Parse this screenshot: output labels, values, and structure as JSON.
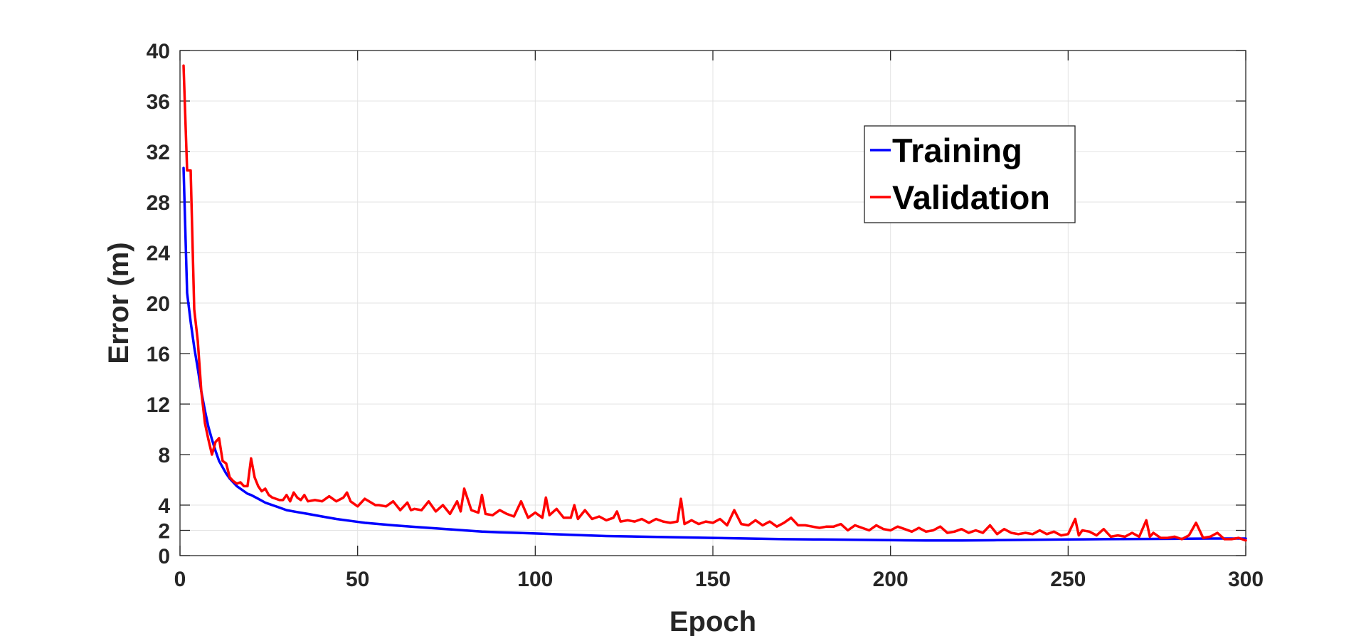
{
  "chart_data": {
    "type": "line",
    "title": "",
    "xlabel": "Epoch",
    "ylabel": "Error (m)",
    "xlim": [
      0,
      300
    ],
    "ylim": [
      0,
      40
    ],
    "xticks": [
      0,
      50,
      100,
      150,
      200,
      250,
      300
    ],
    "yticks": [
      0,
      2,
      4,
      8,
      12,
      16,
      20,
      24,
      28,
      32,
      36,
      40
    ],
    "grid": true,
    "legend_position": "top-right",
    "series": [
      {
        "name": "Training",
        "color": "#0000ff",
        "x": [
          1,
          2,
          3,
          4,
          5,
          6,
          7,
          8,
          9,
          10,
          11,
          12,
          13,
          14,
          15,
          16,
          17,
          18,
          19,
          20,
          22,
          24,
          26,
          28,
          30,
          33,
          36,
          40,
          44,
          48,
          52,
          56,
          60,
          65,
          70,
          75,
          80,
          85,
          90,
          95,
          100,
          110,
          120,
          130,
          140,
          150,
          160,
          170,
          180,
          190,
          200,
          210,
          220,
          230,
          240,
          250,
          260,
          270,
          280,
          290,
          300
        ],
        "values": [
          30.7,
          20.8,
          18.5,
          16.5,
          14.8,
          13.0,
          11.5,
          10.2,
          9.2,
          8.3,
          7.5,
          7.0,
          6.5,
          6.1,
          5.8,
          5.5,
          5.3,
          5.1,
          4.9,
          4.8,
          4.5,
          4.2,
          4.0,
          3.8,
          3.6,
          3.45,
          3.3,
          3.1,
          2.9,
          2.75,
          2.6,
          2.5,
          2.4,
          2.3,
          2.2,
          2.1,
          2.0,
          1.9,
          1.85,
          1.8,
          1.75,
          1.65,
          1.55,
          1.5,
          1.45,
          1.4,
          1.35,
          1.3,
          1.28,
          1.25,
          1.22,
          1.2,
          1.2,
          1.22,
          1.25,
          1.28,
          1.3,
          1.32,
          1.33,
          1.35,
          1.35
        ]
      },
      {
        "name": "Validation",
        "color": "#ff0000",
        "x": [
          1,
          2,
          3,
          4,
          5,
          6,
          7,
          8,
          9,
          10,
          11,
          12,
          13,
          14,
          15,
          16,
          17,
          18,
          19,
          20,
          21,
          22,
          23,
          24,
          25,
          26,
          27,
          28,
          29,
          30,
          31,
          32,
          33,
          34,
          35,
          36,
          38,
          40,
          42,
          44,
          46,
          47,
          48,
          50,
          52,
          55,
          56,
          58,
          60,
          62,
          64,
          65,
          66,
          68,
          70,
          72,
          74,
          76,
          78,
          79,
          80,
          82,
          84,
          85,
          86,
          88,
          90,
          92,
          94,
          96,
          98,
          100,
          102,
          103,
          104,
          106,
          108,
          110,
          111,
          112,
          114,
          116,
          118,
          120,
          122,
          123,
          124,
          126,
          128,
          130,
          132,
          134,
          136,
          138,
          140,
          141,
          142,
          144,
          146,
          148,
          150,
          152,
          154,
          156,
          158,
          160,
          162,
          164,
          166,
          168,
          170,
          172,
          174,
          176,
          178,
          180,
          182,
          184,
          186,
          188,
          190,
          192,
          194,
          196,
          198,
          200,
          202,
          204,
          206,
          208,
          210,
          212,
          214,
          216,
          218,
          220,
          222,
          224,
          226,
          228,
          230,
          232,
          234,
          236,
          238,
          240,
          242,
          244,
          246,
          248,
          250,
          252,
          253,
          254,
          256,
          258,
          260,
          262,
          264,
          266,
          268,
          270,
          272,
          273,
          274,
          276,
          278,
          280,
          282,
          284,
          286,
          288,
          290,
          292,
          294,
          296,
          298,
          300
        ],
        "values": [
          38.8,
          30.5,
          30.5,
          19.5,
          17.0,
          13.0,
          10.5,
          9.2,
          8.0,
          9.0,
          9.3,
          7.5,
          7.3,
          6.2,
          5.9,
          5.7,
          5.8,
          5.5,
          5.5,
          7.7,
          6.2,
          5.5,
          5.1,
          5.3,
          4.8,
          4.6,
          4.5,
          4.4,
          4.4,
          4.8,
          4.3,
          5.0,
          4.6,
          4.4,
          4.8,
          4.3,
          4.4,
          4.3,
          4.7,
          4.3,
          4.6,
          5.0,
          4.3,
          3.9,
          4.5,
          4.0,
          4.0,
          3.9,
          4.3,
          3.6,
          4.2,
          3.6,
          3.7,
          3.6,
          4.3,
          3.5,
          4.0,
          3.3,
          4.3,
          3.5,
          5.3,
          3.6,
          3.4,
          4.8,
          3.3,
          3.2,
          3.6,
          3.3,
          3.1,
          4.3,
          3.0,
          3.4,
          3.0,
          4.6,
          3.2,
          3.7,
          3.0,
          3.0,
          4.0,
          2.9,
          3.6,
          2.9,
          3.1,
          2.8,
          3.0,
          3.5,
          2.7,
          2.8,
          2.7,
          2.9,
          2.6,
          2.9,
          2.7,
          2.6,
          2.7,
          4.5,
          2.5,
          2.8,
          2.5,
          2.7,
          2.6,
          2.9,
          2.4,
          3.6,
          2.5,
          2.4,
          2.8,
          2.4,
          2.7,
          2.3,
          2.6,
          3.0,
          2.4,
          2.4,
          2.3,
          2.2,
          2.3,
          2.3,
          2.5,
          2.0,
          2.4,
          2.2,
          2.0,
          2.4,
          2.1,
          2.0,
          2.3,
          2.1,
          1.9,
          2.2,
          1.9,
          2.0,
          2.3,
          1.8,
          1.9,
          2.1,
          1.8,
          2.0,
          1.8,
          2.4,
          1.7,
          2.1,
          1.8,
          1.7,
          1.8,
          1.7,
          2.0,
          1.7,
          1.9,
          1.6,
          1.7,
          2.9,
          1.6,
          2.0,
          1.9,
          1.6,
          2.1,
          1.5,
          1.6,
          1.5,
          1.8,
          1.5,
          2.8,
          1.5,
          1.8,
          1.4,
          1.4,
          1.5,
          1.3,
          1.6,
          2.6,
          1.4,
          1.5,
          1.8,
          1.3,
          1.3,
          1.4,
          1.2
        ]
      }
    ]
  }
}
